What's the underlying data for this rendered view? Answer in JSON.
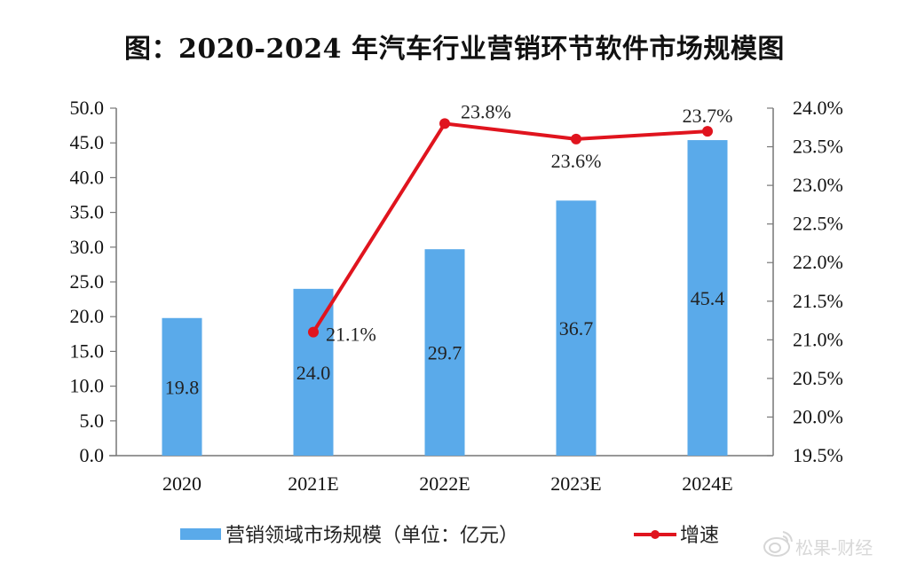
{
  "chart_data": {
    "type": "bar",
    "title": "图：2020-2024 年汽车行业营销环节软件市场规模图",
    "categories": [
      "2020",
      "2021E",
      "2022E",
      "2023E",
      "2024E"
    ],
    "series": [
      {
        "name": "营销领域市场规模（单位：亿元）",
        "type": "bar",
        "axis": "left",
        "color": "#5aaaea",
        "values": [
          19.8,
          24.0,
          29.7,
          36.7,
          45.4
        ],
        "labels": [
          "19.8",
          "24.0",
          "29.7",
          "36.7",
          "45.4"
        ]
      },
      {
        "name": "增速",
        "type": "line",
        "axis": "right",
        "color": "#e0141e",
        "values": [
          null,
          21.1,
          23.8,
          23.6,
          23.7
        ],
        "labels": [
          null,
          "21.1%",
          "23.8%",
          "23.6%",
          "23.7%"
        ]
      }
    ],
    "left_axis": {
      "range": [
        0,
        50
      ],
      "ticks": [
        "0.0",
        "5.0",
        "10.0",
        "15.0",
        "20.0",
        "25.0",
        "30.0",
        "35.0",
        "40.0",
        "45.0",
        "50.0"
      ]
    },
    "right_axis": {
      "range": [
        19.5,
        24.0
      ],
      "ticks": [
        "19.5%",
        "20.0%",
        "20.5%",
        "21.0%",
        "21.5%",
        "22.0%",
        "22.5%",
        "23.0%",
        "23.5%",
        "24.0%"
      ]
    },
    "grid": false,
    "legend_position": "bottom",
    "xlabel": "",
    "ylabel": ""
  },
  "watermark": {
    "text": "松果-财经",
    "icon": "weibo-icon"
  }
}
